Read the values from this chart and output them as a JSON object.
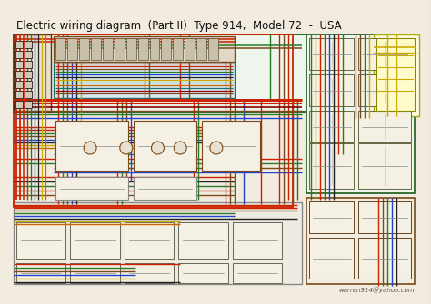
{
  "title": "Electric wiring diagram  (Part II)  Type 914,  Model 72  -  USA",
  "title_fontsize": 8.5,
  "watermark": "warren914@yahoo.com",
  "bg_color": "#ede8dc",
  "paper_color": "#f2ece0",
  "diagram_area": [
    10,
    15,
    455,
    300
  ]
}
